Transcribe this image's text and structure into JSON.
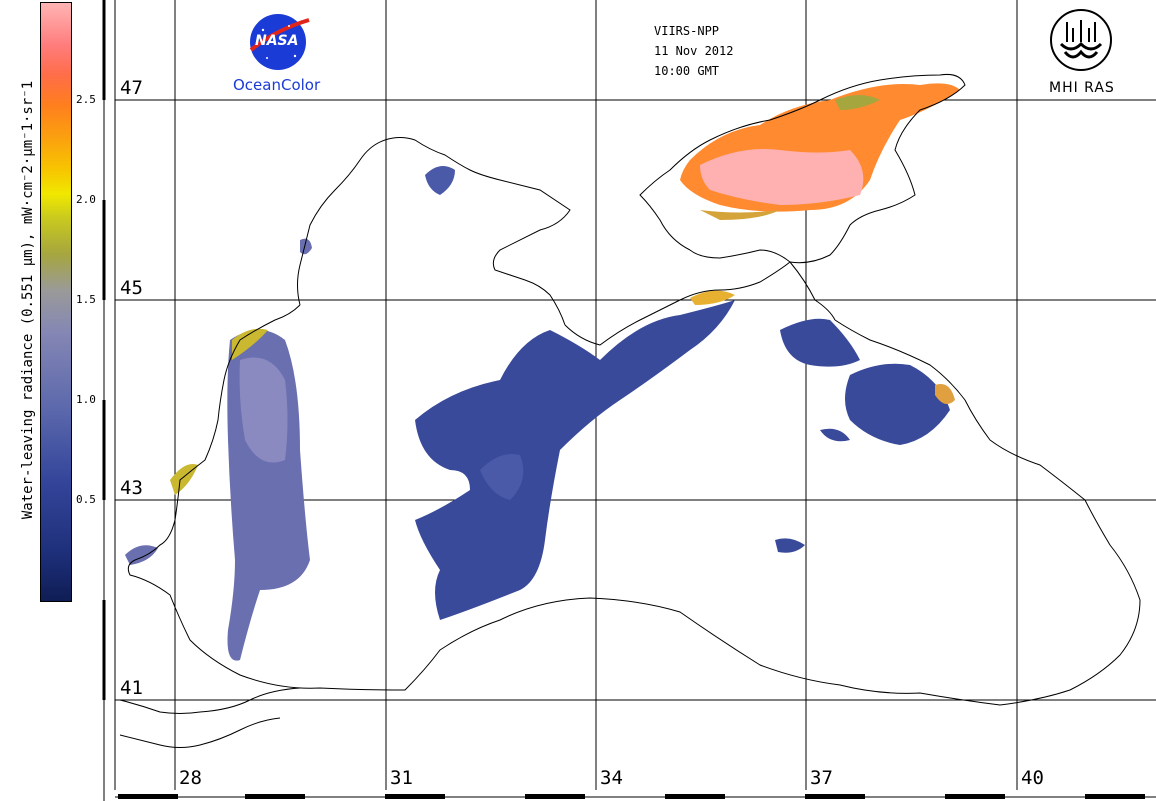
{
  "colorbar": {
    "label": "Water-leaving radiance (0.551 µm), mW·cm⁻2·µm⁻1·sr⁻1",
    "ticks": [
      "2.5",
      "2.0",
      "1.5",
      "1.0",
      "0.5"
    ],
    "tick_values": [
      2.5,
      2.0,
      1.5,
      1.0,
      0.5
    ],
    "range": [
      0,
      3.0
    ],
    "colors": [
      "#0f1d55",
      "#34459a",
      "#8587b4",
      "#a6a63f",
      "#f0e800",
      "#ff7e1e",
      "#ffb4b4"
    ]
  },
  "header": {
    "sensor": "VIIRS-NPP",
    "date": "11 Nov 2012",
    "time": "10:00 GMT"
  },
  "logos": {
    "nasa_text": "NASA",
    "oceancolor": "OceanColor",
    "mhi": "MHI RAS"
  },
  "grid": {
    "latitudes": [
      "47",
      "45",
      "43",
      "41"
    ],
    "longitudes": [
      "28",
      "31",
      "34",
      "37",
      "40"
    ]
  },
  "map_colors": {
    "land": "#ffffff",
    "coast": "#000000",
    "low_radiance": "#3a4a9a",
    "mid_radiance": "#8a8ab8",
    "high_radiance": "#ff8a30",
    "very_high_radiance": "#ffb0b0"
  }
}
